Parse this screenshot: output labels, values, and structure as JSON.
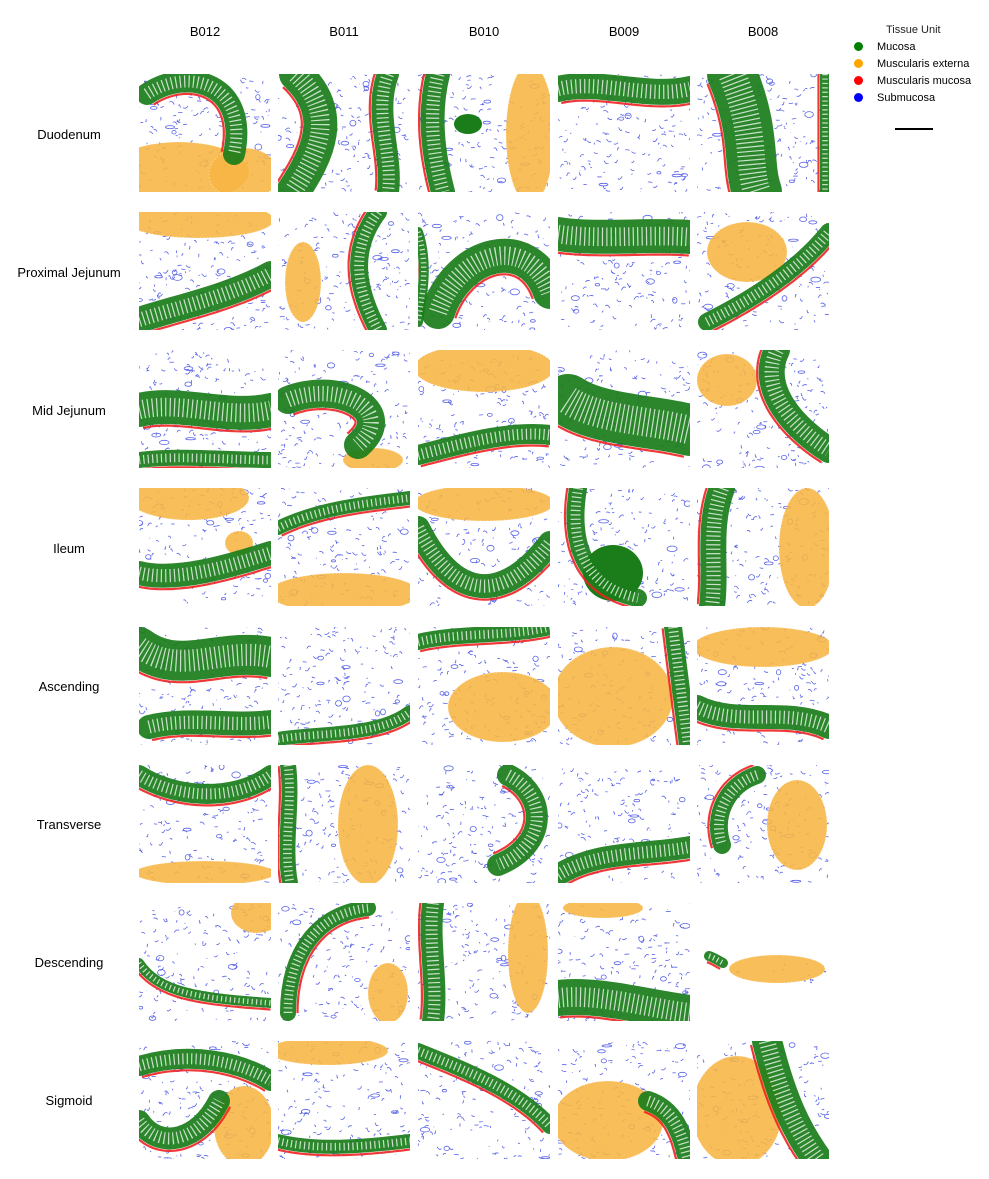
{
  "columns": [
    "B012",
    "B011",
    "B010",
    "B009",
    "B008"
  ],
  "rows": [
    "Duodenum",
    "Proximal Jejunum",
    "Mid Jejunum",
    "Ileum",
    "Ascending",
    "Transverse",
    "Descending",
    "Sigmoid"
  ],
  "legend": {
    "title": "Tissue Unit",
    "items": [
      {
        "label": "Mucosa",
        "color": "#008000"
      },
      {
        "label": "Muscularis externa",
        "color": "#ffa500"
      },
      {
        "label": "Muscularis mucosa",
        "color": "#ff0000"
      },
      {
        "label": "Submucosa",
        "color": "#0000ff"
      }
    ]
  },
  "colors": {
    "mucosa": "#1a7d1a",
    "muscularis_externa": "#f7b543",
    "muscularis_mucosa": "#ee2222",
    "submucosa": "#2230e0"
  }
}
